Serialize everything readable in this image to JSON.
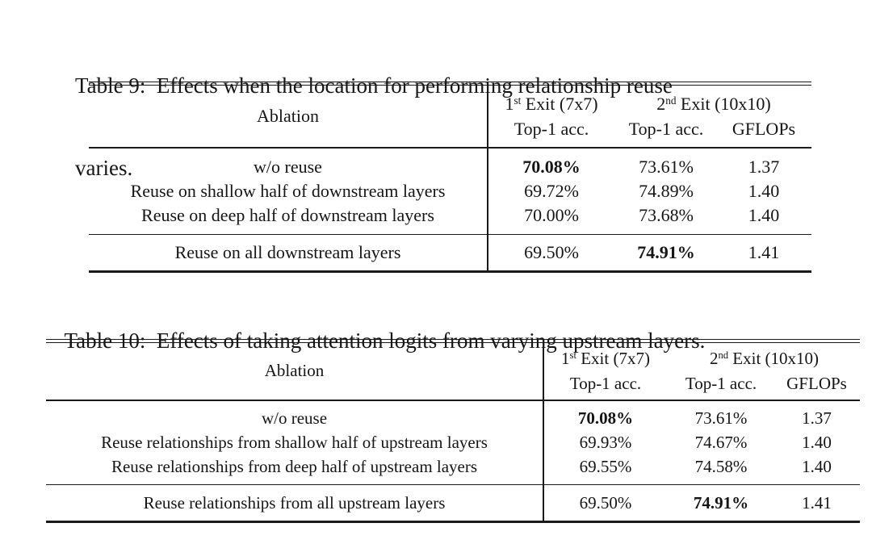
{
  "page": {
    "background": "#ffffff",
    "text_color": "#151515",
    "rule_color": "#1a1a1a"
  },
  "table9": {
    "caption_line1": "Table 9:  Effects when the location for performing relationship reuse",
    "caption_line2": "varies.",
    "header": {
      "ablation": "Ablation",
      "exit1_base": "1",
      "exit1_sup": "st",
      "exit1_tail": " Exit (7x7)",
      "exit2_base": "2",
      "exit2_sup": "nd",
      "exit2_tail": " Exit (10x10)",
      "col1": "Top-1 acc.",
      "col2": "Top-1 acc.",
      "col3": "GFLOPs"
    },
    "rows": [
      {
        "label": "w/o reuse",
        "acc1": "70.08%",
        "acc2": "73.61%",
        "gflops": "1.37",
        "bold_cell": "acc1"
      },
      {
        "label": "Reuse on shallow half of downstream layers",
        "acc1": "69.72%",
        "acc2": "74.89%",
        "gflops": "1.40",
        "bold_cell": ""
      },
      {
        "label": "Reuse on deep half of downstream layers",
        "acc1": "70.00%",
        "acc2": "73.68%",
        "gflops": "1.40",
        "bold_cell": ""
      }
    ],
    "final_row": {
      "label": "Reuse on all downstream layers",
      "acc1": "69.50%",
      "acc2": "74.91%",
      "gflops": "1.41",
      "bold_cell": "acc2"
    }
  },
  "table10": {
    "caption": "Table 10:  Effects of taking attention logits from varying upstream layers.",
    "header": {
      "ablation": "Ablation",
      "exit1_base": "1",
      "exit1_sup": "st",
      "exit1_tail": " Exit (7x7)",
      "exit2_base": "2",
      "exit2_sup": "nd",
      "exit2_tail": " Exit (10x10)",
      "col1": "Top-1 acc.",
      "col2": "Top-1 acc.",
      "col3": "GFLOPs"
    },
    "rows": [
      {
        "label": "w/o reuse",
        "acc1": "70.08%",
        "acc2": "73.61%",
        "gflops": "1.37",
        "bold_cell": "acc1"
      },
      {
        "label": "Reuse relationships from shallow half of upstream layers",
        "acc1": "69.93%",
        "acc2": "74.67%",
        "gflops": "1.40",
        "bold_cell": ""
      },
      {
        "label": "Reuse relationships from deep half of upstream layers",
        "acc1": "69.55%",
        "acc2": "74.58%",
        "gflops": "1.40",
        "bold_cell": ""
      }
    ],
    "final_row": {
      "label": "Reuse relationships from all upstream layers",
      "acc1": "69.50%",
      "acc2": "74.91%",
      "gflops": "1.41",
      "bold_cell": "acc2"
    }
  }
}
